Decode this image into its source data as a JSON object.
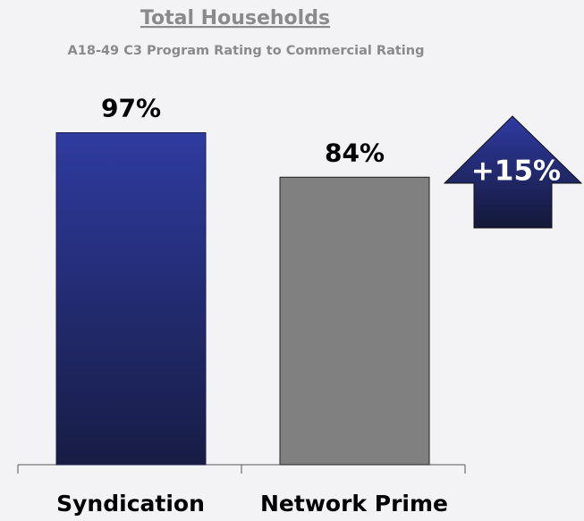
{
  "chart_data": {
    "type": "bar",
    "title": "Total Households",
    "subtitle": "A18-49 C3 Program Rating to Commercial Rating",
    "categories": [
      "Syndication",
      "Network Prime"
    ],
    "series": [
      {
        "name": null,
        "colors": [
          "#2d3898",
          "#808080"
        ],
        "values": [
          97,
          84
        ],
        "value_labels": [
          "97%",
          "84%"
        ]
      }
    ],
    "annotations": [
      {
        "text": "+15%",
        "color": "#26307f"
      }
    ]
  }
}
